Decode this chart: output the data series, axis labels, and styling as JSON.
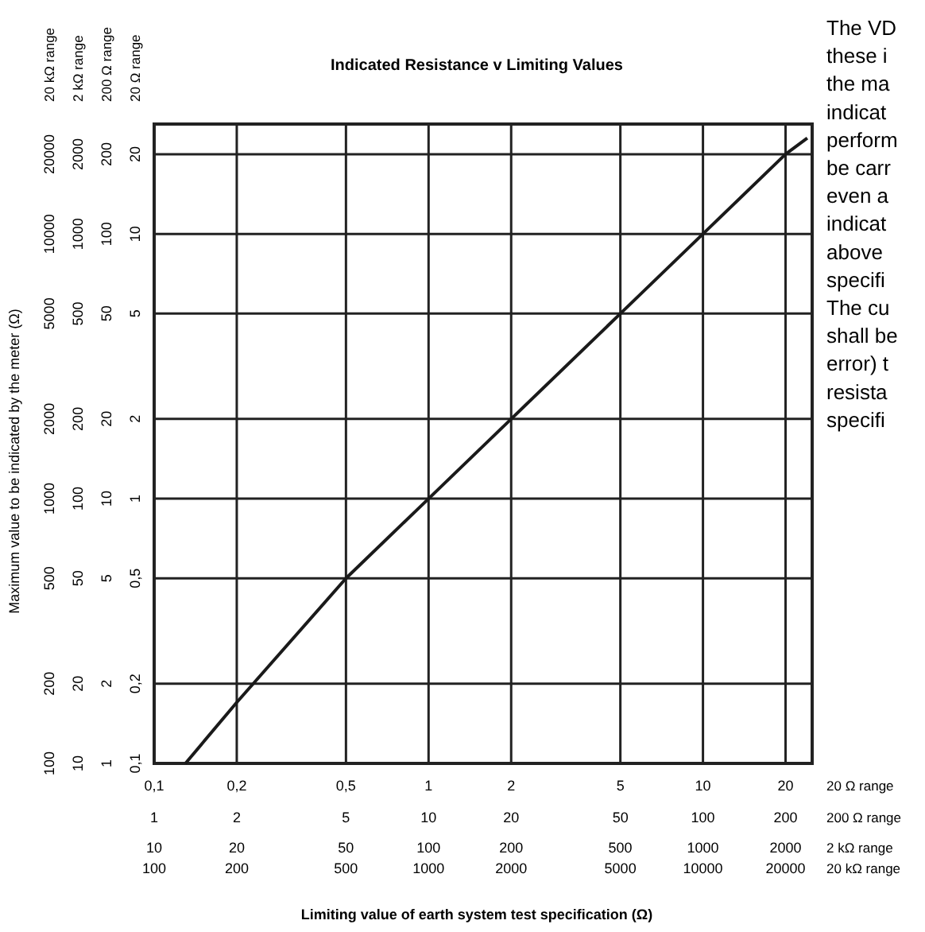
{
  "chart_data": {
    "type": "line",
    "title": "Indicated Resistance v Limiting Values",
    "log": "xy",
    "grid": true,
    "marker": "none",
    "line_style": "solid",
    "xlim": [
      0.1,
      25
    ],
    "ylim": [
      0.1,
      26
    ],
    "xticks": [
      {
        "value": 0.1,
        "label": "0,1"
      },
      {
        "value": 0.2,
        "label": "0,2"
      },
      {
        "value": 0.5,
        "label": "0,5"
      },
      1,
      2,
      5,
      10,
      20
    ],
    "yticks": [
      {
        "value": 0.1,
        "label": "0,1"
      },
      {
        "value": 0.2,
        "label": "0,2"
      },
      {
        "value": 0.5,
        "label": "0,5"
      },
      1,
      2,
      5,
      10,
      20
    ],
    "series": [
      {
        "color": "#1a1a1a",
        "x": [
          0.13,
          0.2,
          0.5,
          1,
          2,
          5,
          10,
          20,
          24
        ],
        "values": [
          0.1,
          0.17,
          0.5,
          1,
          2,
          5,
          10,
          20,
          23
        ]
      }
    ],
    "annotations": [
      "20 Ω range",
      "200 Ω range",
      "2 kΩ range",
      "20 kΩ range",
      "20 Ω range",
      "200 Ω range",
      "2 kΩ range",
      "20 kΩ range",
      "The VD",
      "these i",
      "the ma",
      "indicat",
      "perform",
      "be carr",
      "even a",
      "indicat",
      "above",
      "specifi",
      "The cu",
      "shall be",
      "error) t",
      "resista",
      "specifi",
      "Limiting value of earth system test specification (Ω)",
      "Maximum value to be indicated by the meter (Ω)",
      "1",
      "2",
      "5",
      "10",
      "20",
      "50",
      "100",
      "200",
      "10",
      "20",
      "50",
      "100",
      "200",
      "500",
      "1000",
      "2000",
      "100",
      "200",
      "500",
      "1000",
      "2000",
      "5000",
      "10000",
      "20000",
      "1",
      "2",
      "5",
      "10",
      "20",
      "50",
      "100",
      "200",
      "10",
      "20",
      "50",
      "100",
      "200",
      "500",
      "1000",
      "2000",
      "100",
      "200",
      "500",
      "1000",
      "2000",
      "5000",
      "10000",
      "20000"
    ]
  }
}
